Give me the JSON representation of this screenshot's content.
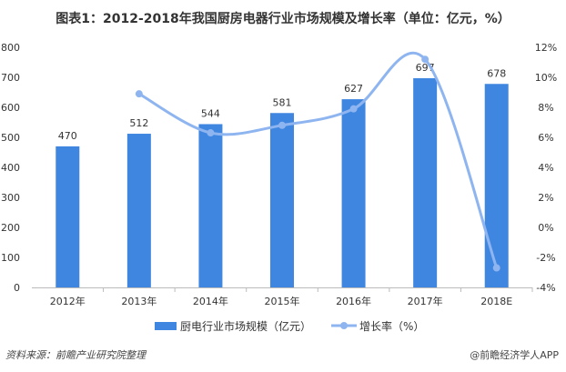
{
  "chart_data": {
    "type": "bar+line",
    "title": "图表1：2012-2018年我国厨房电器行业市场规模及增长率（单位：亿元，%）",
    "categories": [
      "2012年",
      "2013年",
      "2014年",
      "2015年",
      "2016年",
      "2017年",
      "2018E"
    ],
    "series": [
      {
        "name": "厨电行业市场规模（亿元）",
        "type": "bar",
        "axis": "left",
        "color": "#3f86e0",
        "values": [
          470,
          512,
          544,
          581,
          627,
          697,
          678
        ]
      },
      {
        "name": "增长率（%）",
        "type": "line",
        "axis": "right",
        "color": "#8fb5f0",
        "values": [
          null,
          8.9,
          6.3,
          6.8,
          7.9,
          11.2,
          -2.7
        ]
      }
    ],
    "left_axis": {
      "ylim": [
        0,
        800
      ],
      "ticks": [
        0,
        100,
        200,
        300,
        400,
        500,
        600,
        700,
        800
      ]
    },
    "right_axis": {
      "ylim": [
        -4,
        12
      ],
      "ticks": [
        "-4%",
        "-2%",
        "0%",
        "2%",
        "4%",
        "6%",
        "8%",
        "10%",
        "12%"
      ]
    },
    "grid": false,
    "legend": "bottom"
  },
  "source": "资料来源：前瞻产业研究院整理",
  "credit": "@前瞻经济学人APP"
}
